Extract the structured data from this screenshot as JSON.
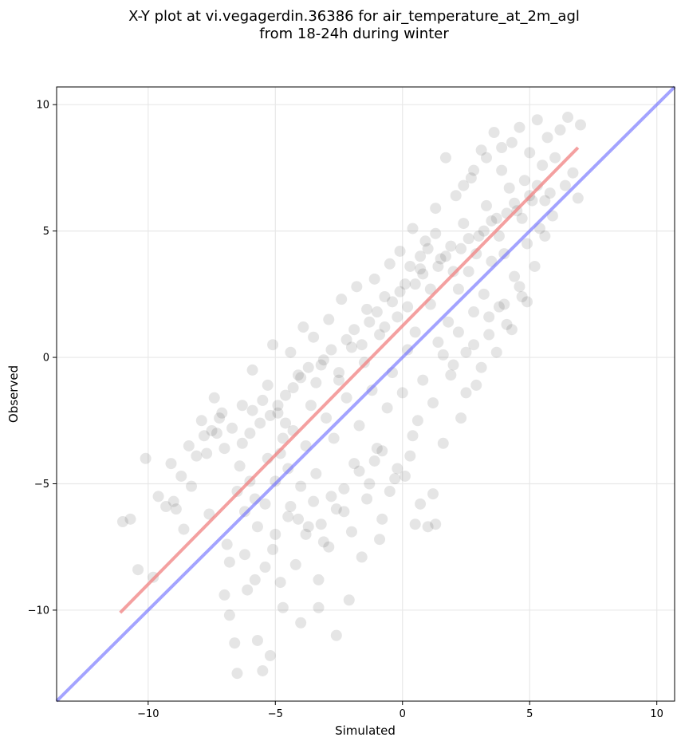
{
  "chart_data": {
    "type": "scatter",
    "title": "X-Y plot at vi.vegagerdin.36386 for air_temperature_at_2m_agl",
    "subtitle": "from 18-24h during winter",
    "xlabel": "Simulated",
    "ylabel": "Observed",
    "xlim": [
      -13.6,
      10.7
    ],
    "ylim": [
      -13.6,
      10.7
    ],
    "xticks": [
      -10,
      -5,
      0,
      5,
      10
    ],
    "yticks": [
      -10,
      -5,
      0,
      5,
      10
    ],
    "xtick_labels": [
      "−10",
      "−5",
      "0",
      "5",
      "10"
    ],
    "ytick_labels": [
      "−10",
      "−5",
      "0",
      "5",
      "10"
    ],
    "grid": true,
    "colors": {
      "points": "#000000",
      "regression_line": "#f08080",
      "identity_line": "#6666ff"
    },
    "regression_line": {
      "x": [
        -11.1,
        6.9
      ],
      "y": [
        -10.1,
        8.3
      ]
    },
    "identity_line": {
      "x": [
        -13.6,
        10.7
      ],
      "y": [
        -13.6,
        10.7
      ]
    },
    "points": [
      {
        "x": -11.0,
        "y": -6.5
      },
      {
        "x": -10.7,
        "y": -6.4
      },
      {
        "x": -10.4,
        "y": -8.4
      },
      {
        "x": -10.1,
        "y": -4.0
      },
      {
        "x": -9.8,
        "y": -8.7
      },
      {
        "x": -9.6,
        "y": -5.5
      },
      {
        "x": -9.3,
        "y": -5.9
      },
      {
        "x": -9.1,
        "y": -4.2
      },
      {
        "x": -9.0,
        "y": -5.7
      },
      {
        "x": -8.7,
        "y": -4.7
      },
      {
        "x": -8.6,
        "y": -6.8
      },
      {
        "x": -8.4,
        "y": -3.5
      },
      {
        "x": -8.1,
        "y": -3.9
      },
      {
        "x": -7.9,
        "y": -2.5
      },
      {
        "x": -7.7,
        "y": -3.8
      },
      {
        "x": -7.6,
        "y": -6.2
      },
      {
        "x": -7.4,
        "y": -1.6
      },
      {
        "x": -7.3,
        "y": -3.0
      },
      {
        "x": -7.1,
        "y": -2.2
      },
      {
        "x": -7.0,
        "y": -3.6
      },
      {
        "x": -6.9,
        "y": -7.4
      },
      {
        "x": -6.8,
        "y": -10.2
      },
      {
        "x": -6.6,
        "y": -11.3
      },
      {
        "x": -6.5,
        "y": -12.5
      },
      {
        "x": -6.4,
        "y": -4.3
      },
      {
        "x": -6.3,
        "y": -1.9
      },
      {
        "x": -6.2,
        "y": -7.8
      },
      {
        "x": -6.1,
        "y": -9.2
      },
      {
        "x": -6.0,
        "y": -3.0
      },
      {
        "x": -5.9,
        "y": -0.5
      },
      {
        "x": -5.8,
        "y": -8.8
      },
      {
        "x": -5.7,
        "y": -11.2
      },
      {
        "x": -5.6,
        "y": -2.6
      },
      {
        "x": -5.5,
        "y": -12.4
      },
      {
        "x": -5.4,
        "y": -5.8
      },
      {
        "x": -5.3,
        "y": -1.1
      },
      {
        "x": -5.2,
        "y": -11.8
      },
      {
        "x": -5.1,
        "y": 0.5
      },
      {
        "x": -5.0,
        "y": -7.0
      },
      {
        "x": -4.9,
        "y": -2.2
      },
      {
        "x": -4.8,
        "y": -3.8
      },
      {
        "x": -4.7,
        "y": -9.9
      },
      {
        "x": -4.6,
        "y": -1.5
      },
      {
        "x": -4.5,
        "y": -6.3
      },
      {
        "x": -4.4,
        "y": 0.2
      },
      {
        "x": -4.3,
        "y": -2.9
      },
      {
        "x": -4.2,
        "y": -8.2
      },
      {
        "x": -4.1,
        "y": -0.7
      },
      {
        "x": -4.0,
        "y": -5.1
      },
      {
        "x": -3.9,
        "y": 1.2
      },
      {
        "x": -3.8,
        "y": -3.5
      },
      {
        "x": -3.7,
        "y": -6.7
      },
      {
        "x": -3.6,
        "y": -1.9
      },
      {
        "x": -3.5,
        "y": 0.8
      },
      {
        "x": -3.4,
        "y": -4.6
      },
      {
        "x": -3.3,
        "y": -9.9
      },
      {
        "x": -3.2,
        "y": -0.3
      },
      {
        "x": -3.1,
        "y": -7.3
      },
      {
        "x": -3.0,
        "y": -2.4
      },
      {
        "x": -2.9,
        "y": 1.5
      },
      {
        "x": -2.8,
        "y": -5.5
      },
      {
        "x": -2.7,
        "y": -3.2
      },
      {
        "x": -2.6,
        "y": -11.0
      },
      {
        "x": -2.5,
        "y": -0.9
      },
      {
        "x": -2.4,
        "y": 2.3
      },
      {
        "x": -2.3,
        "y": -6.1
      },
      {
        "x": -2.2,
        "y": -1.6
      },
      {
        "x": -2.1,
        "y": -9.6
      },
      {
        "x": -2.0,
        "y": 0.4
      },
      {
        "x": -1.9,
        "y": -4.2
      },
      {
        "x": -1.8,
        "y": 2.8
      },
      {
        "x": -1.7,
        "y": -2.7
      },
      {
        "x": -1.6,
        "y": -7.9
      },
      {
        "x": -1.5,
        "y": -0.2
      },
      {
        "x": -1.4,
        "y": 1.9
      },
      {
        "x": -1.3,
        "y": -5.0
      },
      {
        "x": -1.2,
        "y": -1.3
      },
      {
        "x": -1.1,
        "y": 3.1
      },
      {
        "x": -1.0,
        "y": -3.6
      },
      {
        "x": -0.9,
        "y": 0.9
      },
      {
        "x": -0.8,
        "y": -6.4
      },
      {
        "x": -0.7,
        "y": 2.4
      },
      {
        "x": -0.6,
        "y": -2.0
      },
      {
        "x": -0.5,
        "y": 3.7
      },
      {
        "x": -0.4,
        "y": -0.6
      },
      {
        "x": -0.3,
        "y": -4.8
      },
      {
        "x": -0.2,
        "y": 1.6
      },
      {
        "x": -0.1,
        "y": 4.2
      },
      {
        "x": 0.0,
        "y": -1.4
      },
      {
        "x": 0.1,
        "y": 2.9
      },
      {
        "x": 0.2,
        "y": 0.3
      },
      {
        "x": 0.3,
        "y": -3.9
      },
      {
        "x": 0.4,
        "y": 5.1
      },
      {
        "x": 0.5,
        "y": 1.0
      },
      {
        "x": 0.6,
        "y": -2.5
      },
      {
        "x": 0.7,
        "y": 3.5
      },
      {
        "x": 0.8,
        "y": -0.9
      },
      {
        "x": 0.9,
        "y": 4.6
      },
      {
        "x": 1.0,
        "y": -6.7
      },
      {
        "x": 1.1,
        "y": 2.1
      },
      {
        "x": 1.2,
        "y": -1.8
      },
      {
        "x": 1.3,
        "y": 5.9
      },
      {
        "x": 1.4,
        "y": 0.6
      },
      {
        "x": 1.5,
        "y": 3.9
      },
      {
        "x": 1.6,
        "y": -3.4
      },
      {
        "x": 1.7,
        "y": 7.9
      },
      {
        "x": 1.8,
        "y": 1.4
      },
      {
        "x": 1.9,
        "y": 4.4
      },
      {
        "x": 2.0,
        "y": -0.3
      },
      {
        "x": 2.1,
        "y": 6.4
      },
      {
        "x": 2.2,
        "y": 2.7
      },
      {
        "x": 2.3,
        "y": -2.4
      },
      {
        "x": 2.4,
        "y": 5.3
      },
      {
        "x": 2.5,
        "y": 0.2
      },
      {
        "x": 2.6,
        "y": 3.4
      },
      {
        "x": 2.7,
        "y": 7.1
      },
      {
        "x": 2.8,
        "y": 1.8
      },
      {
        "x": 2.9,
        "y": -1.1
      },
      {
        "x": 3.0,
        "y": 4.8
      },
      {
        "x": 3.1,
        "y": 8.2
      },
      {
        "x": 3.2,
        "y": 2.5
      },
      {
        "x": 3.3,
        "y": 6.0
      },
      {
        "x": 3.4,
        "y": 0.9
      },
      {
        "x": 3.5,
        "y": 3.8
      },
      {
        "x": 3.6,
        "y": 8.9
      },
      {
        "x": 3.7,
        "y": 5.5
      },
      {
        "x": 3.8,
        "y": 2.0
      },
      {
        "x": 3.9,
        "y": 7.4
      },
      {
        "x": 4.0,
        "y": 4.1
      },
      {
        "x": 4.1,
        "y": 1.3
      },
      {
        "x": 4.2,
        "y": 6.7
      },
      {
        "x": 4.3,
        "y": 8.5
      },
      {
        "x": 4.4,
        "y": 3.2
      },
      {
        "x": 4.5,
        "y": 5.8
      },
      {
        "x": 4.6,
        "y": 9.1
      },
      {
        "x": 4.7,
        "y": 2.4
      },
      {
        "x": 4.8,
        "y": 7.0
      },
      {
        "x": 4.9,
        "y": 4.5
      },
      {
        "x": 5.0,
        "y": 8.1
      },
      {
        "x": 5.1,
        "y": 6.2
      },
      {
        "x": 5.2,
        "y": 3.6
      },
      {
        "x": 5.3,
        "y": 9.4
      },
      {
        "x": 5.4,
        "y": 5.1
      },
      {
        "x": 5.5,
        "y": 7.6
      },
      {
        "x": 5.6,
        "y": 4.8
      },
      {
        "x": 5.7,
        "y": 8.7
      },
      {
        "x": 5.8,
        "y": 6.5
      },
      {
        "x": 5.9,
        "y": 5.6
      },
      {
        "x": 6.0,
        "y": 7.9
      },
      {
        "x": 6.2,
        "y": 9.0
      },
      {
        "x": 6.4,
        "y": 6.8
      },
      {
        "x": 6.5,
        "y": 9.5
      },
      {
        "x": 6.7,
        "y": 7.3
      },
      {
        "x": 6.9,
        "y": 6.3
      },
      {
        "x": 7.0,
        "y": 9.2
      },
      {
        "x": -7.8,
        "y": -3.1
      },
      {
        "x": -7.5,
        "y": -2.9
      },
      {
        "x": -7.2,
        "y": -2.4
      },
      {
        "x": -6.7,
        "y": -2.8
      },
      {
        "x": -6.3,
        "y": -3.4
      },
      {
        "x": -5.9,
        "y": -2.1
      },
      {
        "x": -5.5,
        "y": -1.7
      },
      {
        "x": -5.2,
        "y": -2.3
      },
      {
        "x": -4.9,
        "y": -1.9
      },
      {
        "x": -4.6,
        "y": -2.6
      },
      {
        "x": -4.3,
        "y": -1.2
      },
      {
        "x": -4.0,
        "y": -0.8
      },
      {
        "x": -3.7,
        "y": -0.4
      },
      {
        "x": -3.4,
        "y": -1.0
      },
      {
        "x": -3.1,
        "y": -0.1
      },
      {
        "x": -2.8,
        "y": 0.3
      },
      {
        "x": -2.5,
        "y": -0.6
      },
      {
        "x": -2.2,
        "y": 0.7
      },
      {
        "x": -1.9,
        "y": 1.1
      },
      {
        "x": -1.6,
        "y": 0.5
      },
      {
        "x": -1.3,
        "y": 1.4
      },
      {
        "x": -1.0,
        "y": 1.8
      },
      {
        "x": -0.7,
        "y": 1.2
      },
      {
        "x": -0.4,
        "y": 2.2
      },
      {
        "x": -0.1,
        "y": 2.6
      },
      {
        "x": 0.2,
        "y": 2.0
      },
      {
        "x": 0.5,
        "y": 2.9
      },
      {
        "x": 0.8,
        "y": 3.3
      },
      {
        "x": 1.1,
        "y": 2.7
      },
      {
        "x": 1.4,
        "y": 3.6
      },
      {
        "x": 1.7,
        "y": 4.0
      },
      {
        "x": 2.0,
        "y": 3.4
      },
      {
        "x": 2.3,
        "y": 4.3
      },
      {
        "x": 2.6,
        "y": 4.7
      },
      {
        "x": 2.9,
        "y": 4.1
      },
      {
        "x": 3.2,
        "y": 5.0
      },
      {
        "x": 3.5,
        "y": 5.4
      },
      {
        "x": 3.8,
        "y": 4.8
      },
      {
        "x": 4.1,
        "y": 5.7
      },
      {
        "x": 4.4,
        "y": 6.1
      },
      {
        "x": 4.7,
        "y": 5.5
      },
      {
        "x": 5.0,
        "y": 6.4
      },
      {
        "x": 5.3,
        "y": 6.8
      },
      {
        "x": 5.6,
        "y": 6.2
      },
      {
        "x": -4.4,
        "y": -5.9
      },
      {
        "x": -4.1,
        "y": -6.4
      },
      {
        "x": -3.8,
        "y": -7.0
      },
      {
        "x": -3.5,
        "y": -5.7
      },
      {
        "x": -3.2,
        "y": -6.6
      },
      {
        "x": -2.9,
        "y": -7.5
      },
      {
        "x": -2.6,
        "y": -6.0
      },
      {
        "x": -2.3,
        "y": -5.2
      },
      {
        "x": -2.0,
        "y": -6.9
      },
      {
        "x": -1.7,
        "y": -4.5
      },
      {
        "x": -1.4,
        "y": -5.6
      },
      {
        "x": -1.1,
        "y": -4.1
      },
      {
        "x": -0.8,
        "y": -3.7
      },
      {
        "x": -0.5,
        "y": -5.3
      },
      {
        "x": -0.2,
        "y": -4.4
      },
      {
        "x": 0.1,
        "y": -4.7
      },
      {
        "x": 0.4,
        "y": -3.1
      },
      {
        "x": 0.7,
        "y": -5.8
      },
      {
        "x": 1.2,
        "y": -5.4
      },
      {
        "x": 1.3,
        "y": -6.6
      },
      {
        "x": -5.3,
        "y": -4.0
      },
      {
        "x": -5.0,
        "y": -4.9
      },
      {
        "x": -4.7,
        "y": -3.2
      },
      {
        "x": -4.5,
        "y": -4.4
      },
      {
        "x": -5.7,
        "y": -6.7
      },
      {
        "x": -5.4,
        "y": -8.3
      },
      {
        "x": -5.1,
        "y": -7.6
      },
      {
        "x": -4.8,
        "y": -8.9
      },
      {
        "x": -6.5,
        "y": -5.3
      },
      {
        "x": -6.2,
        "y": -6.1
      },
      {
        "x": -6.0,
        "y": -4.9
      },
      {
        "x": -5.8,
        "y": -5.6
      },
      {
        "x": 1.6,
        "y": 0.1
      },
      {
        "x": 1.9,
        "y": -0.7
      },
      {
        "x": 2.2,
        "y": 1.0
      },
      {
        "x": 2.5,
        "y": -1.4
      },
      {
        "x": 2.8,
        "y": 0.5
      },
      {
        "x": 3.1,
        "y": -0.4
      },
      {
        "x": 3.4,
        "y": 1.6
      },
      {
        "x": 3.7,
        "y": 0.2
      },
      {
        "x": 4.0,
        "y": 2.1
      },
      {
        "x": 4.3,
        "y": 1.1
      },
      {
        "x": 4.6,
        "y": 2.8
      },
      {
        "x": 4.9,
        "y": 2.2
      },
      {
        "x": 1.0,
        "y": 4.3
      },
      {
        "x": 1.3,
        "y": 4.9
      },
      {
        "x": 0.7,
        "y": 4.0
      },
      {
        "x": 0.3,
        "y": 3.6
      },
      {
        "x": 2.4,
        "y": 6.8
      },
      {
        "x": 2.8,
        "y": 7.4
      },
      {
        "x": 3.3,
        "y": 7.9
      },
      {
        "x": 3.9,
        "y": 8.3
      },
      {
        "x": -8.9,
        "y": -6.0
      },
      {
        "x": -8.3,
        "y": -5.1
      },
      {
        "x": -7.0,
        "y": -9.4
      },
      {
        "x": -6.8,
        "y": -8.1
      },
      {
        "x": -4.0,
        "y": -10.5
      },
      {
        "x": -3.3,
        "y": -8.8
      },
      {
        "x": -0.9,
        "y": -7.2
      },
      {
        "x": 0.5,
        "y": -6.6
      }
    ]
  }
}
